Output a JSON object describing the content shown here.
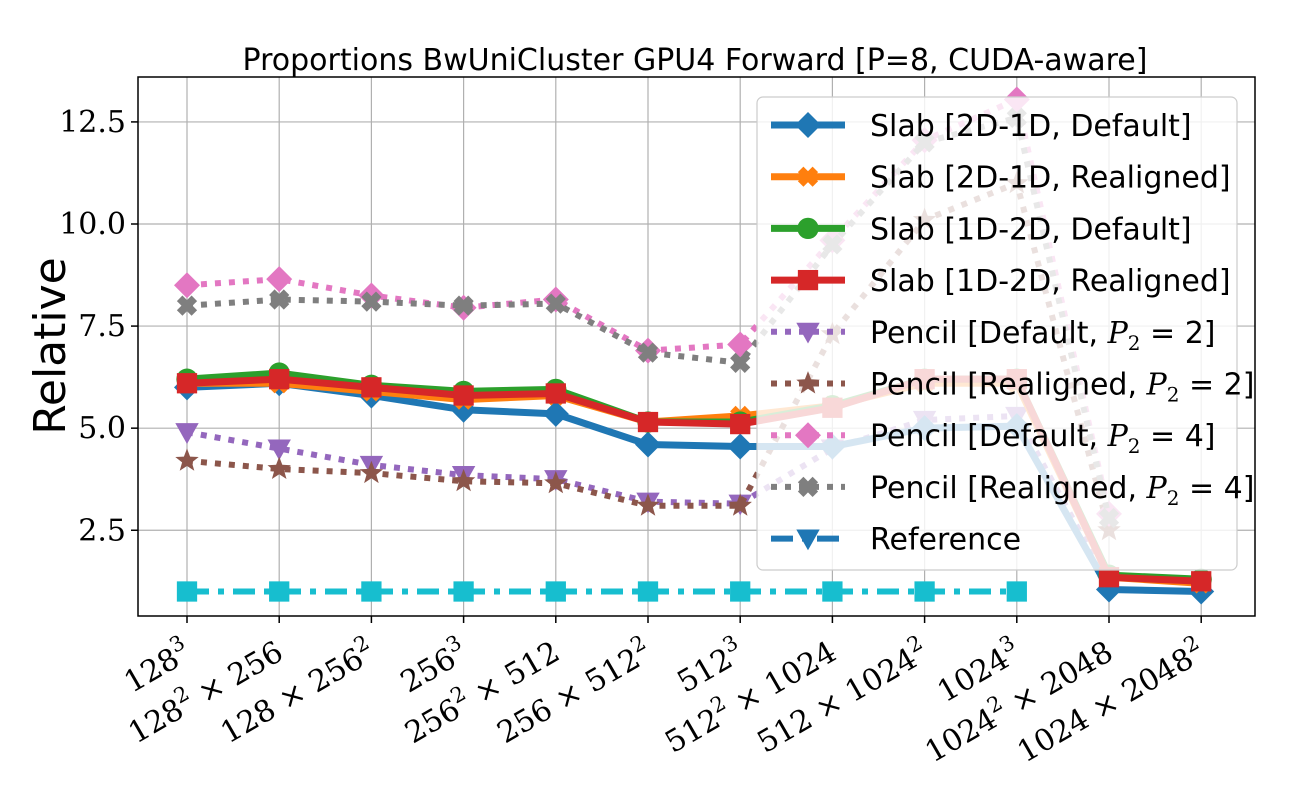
{
  "chart_data": {
    "type": "line",
    "title": "Proportions BwUniCluster GPU4 Forward [P=8, CUDA-aware]",
    "xlabel": "",
    "ylabel": "Relative",
    "ylim": [
      0.4,
      13.6
    ],
    "yticks": [
      "2.5",
      "5.0",
      "7.5",
      "10.0",
      "12.5"
    ],
    "ytick_values": [
      2.5,
      5.0,
      7.5,
      10.0,
      12.5
    ],
    "grid": true,
    "legend_position": "top-right",
    "categories": [
      {
        "base": "128",
        "sup": "3",
        "rest": ""
      },
      {
        "base": "128",
        "sup": "2",
        "rest": " × 256"
      },
      {
        "base": "128 × 256",
        "sup": "2",
        "rest": ""
      },
      {
        "base": "256",
        "sup": "3",
        "rest": ""
      },
      {
        "base": "256",
        "sup": "2",
        "rest": " × 512"
      },
      {
        "base": "256 × 512",
        "sup": "2",
        "rest": ""
      },
      {
        "base": "512",
        "sup": "3",
        "rest": ""
      },
      {
        "base": "512",
        "sup": "2",
        "rest": " × 1024"
      },
      {
        "base": "512 × 1024",
        "sup": "2",
        "rest": ""
      },
      {
        "base": "1024",
        "sup": "3",
        "rest": ""
      },
      {
        "base": "1024",
        "sup": "2",
        "rest": " × 2048"
      },
      {
        "base": "1024 × 2048",
        "sup": "2",
        "rest": ""
      }
    ],
    "series": [
      {
        "name": "Slab [2D-1D, Default]",
        "color": "#1f77b4",
        "marker": "diamond",
        "dash": "solid",
        "values": [
          6.0,
          6.1,
          5.8,
          5.45,
          5.35,
          4.6,
          4.55,
          4.55,
          5.0,
          5.05,
          1.05,
          1.0
        ]
      },
      {
        "name": "Slab [2D-1D, Realigned]",
        "color": "#ff7f0e",
        "marker": "x",
        "dash": "solid",
        "values": [
          6.1,
          6.1,
          5.9,
          5.7,
          5.8,
          5.15,
          5.3,
          5.55,
          6.1,
          6.1,
          1.35,
          1.2
        ]
      },
      {
        "name": "Slab [1D-2D, Default]",
        "color": "#2ca02c",
        "marker": "circle",
        "dash": "solid",
        "values": [
          6.2,
          6.35,
          6.05,
          5.9,
          5.95,
          5.15,
          5.15,
          5.55,
          6.2,
          6.2,
          1.4,
          1.3
        ]
      },
      {
        "name": "Slab [1D-2D, Realigned]",
        "color": "#d62728",
        "marker": "square",
        "dash": "solid",
        "values": [
          6.1,
          6.2,
          6.0,
          5.8,
          5.85,
          5.15,
          5.1,
          5.5,
          6.2,
          6.2,
          1.35,
          1.25
        ]
      },
      {
        "name": "Pencil [Default, P₂ = 2]",
        "nameBase": "Pencil [Default, ",
        "nameTail": " = 2]",
        "color": "#9467bd",
        "marker": "triangle-down",
        "dash": "dot",
        "values": [
          4.9,
          4.5,
          4.1,
          3.85,
          3.75,
          3.2,
          3.15,
          4.5,
          5.2,
          5.3,
          1.15,
          null
        ]
      },
      {
        "name": "Pencil [Realigned, P₂ = 2]",
        "nameBase": "Pencil [Realigned, ",
        "nameTail": " = 2]",
        "color": "#8c564b",
        "marker": "star",
        "dash": "dot",
        "values": [
          4.2,
          4.0,
          3.9,
          3.7,
          3.65,
          3.1,
          3.1,
          7.3,
          10.1,
          11.0,
          2.5,
          null
        ]
      },
      {
        "name": "Pencil [Default, P₂ = 4]",
        "nameBase": "Pencil [Default, ",
        "nameTail": " = 4]",
        "color": "#e377c2",
        "marker": "diamond",
        "dash": "dot",
        "values": [
          8.5,
          8.65,
          8.25,
          7.95,
          8.15,
          6.9,
          7.05,
          9.6,
          12.05,
          13.05,
          2.9,
          null
        ]
      },
      {
        "name": "Pencil [Realigned, P₂ = 4]",
        "nameBase": "Pencil [Realigned, ",
        "nameTail": " = 4]",
        "color": "#7f7f7f",
        "marker": "x",
        "dash": "dot",
        "values": [
          8.0,
          8.15,
          8.1,
          8.0,
          8.05,
          6.85,
          6.6,
          9.5,
          12.0,
          12.6,
          2.8,
          null
        ]
      },
      {
        "name": "Reference",
        "color": "#1f77b4",
        "marker": "triangle-down",
        "dash": "dashdot",
        "legend_only": true,
        "values": [
          null,
          null,
          null,
          null,
          null,
          null,
          null,
          null,
          null,
          null,
          null,
          null
        ]
      },
      {
        "name": "",
        "color": "#17becf",
        "marker": "square",
        "dash": "dashdot",
        "values": [
          1.0,
          1.0,
          1.0,
          1.0,
          1.0,
          1.0,
          1.0,
          1.0,
          1.0,
          1.0,
          null,
          null
        ]
      }
    ]
  }
}
